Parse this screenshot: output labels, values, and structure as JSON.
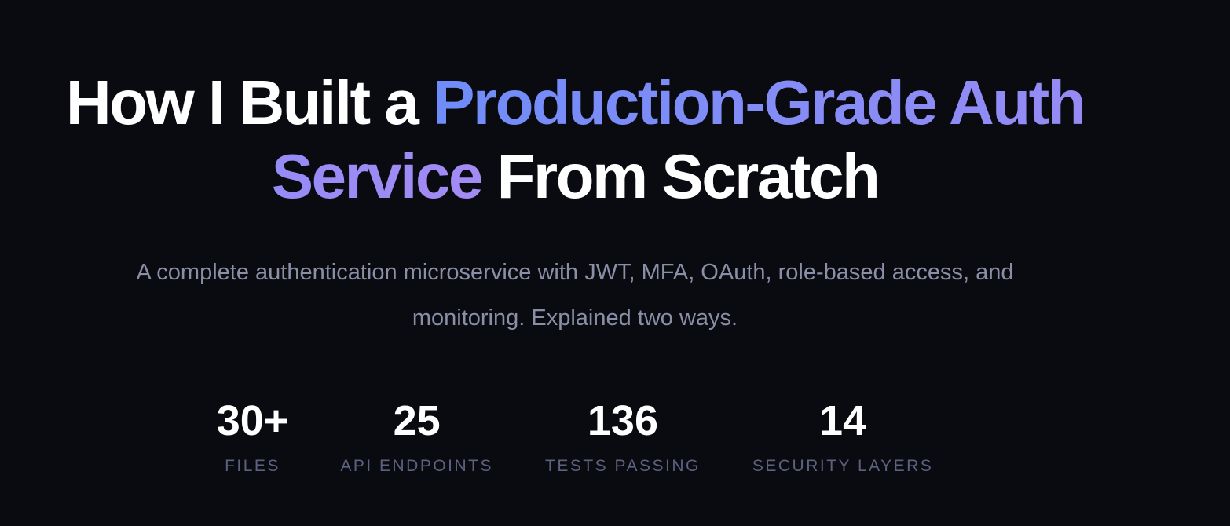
{
  "hero": {
    "title_part1": "How I Built a ",
    "title_highlight": "Production-Grade Auth Service",
    "title_part2": " From Scratch",
    "subtitle": "A complete authentication microservice with JWT, MFA, OAuth, role-based access, and monitoring. Explained two ways.",
    "accent_gradient": [
      "#6f8cf8",
      "#a38bf4"
    ]
  },
  "stats": [
    {
      "value": "30+",
      "label": "FILES"
    },
    {
      "value": "25",
      "label": "API ENDPOINTS"
    },
    {
      "value": "136",
      "label": "TESTS PASSING"
    },
    {
      "value": "14",
      "label": "SECURITY LAYERS"
    }
  ]
}
